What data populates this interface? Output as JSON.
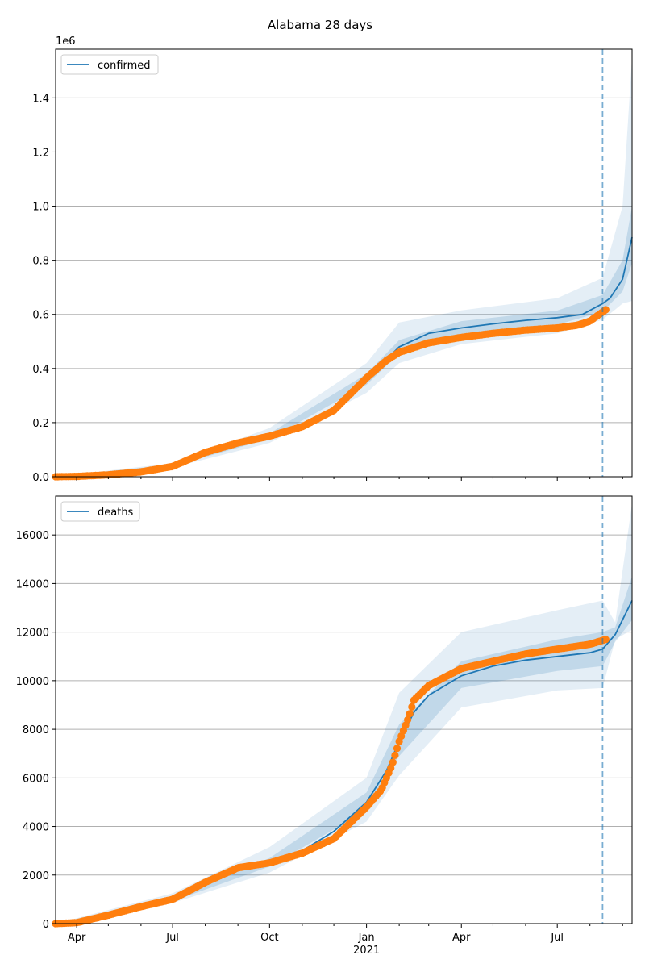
{
  "title": "Alabama 28 days",
  "chart_data": [
    {
      "type": "line",
      "legend": "confirmed",
      "legend_position": "top-left",
      "offset_label": "1e6",
      "scale": 1000000,
      "ylim": [
        0,
        1580000
      ],
      "yticks": [
        0,
        200000,
        400000,
        600000,
        800000,
        1000000,
        1200000,
        1400000
      ],
      "ytick_labels": [
        "0.0",
        "0.2",
        "0.4",
        "0.6",
        "0.8",
        "1.0",
        "1.2",
        "1.4"
      ],
      "grid": "horizontal",
      "forecast_start": "2021-08-13",
      "model_median": [
        [
          "2020-03-12",
          0
        ],
        [
          "2020-04-01",
          1000
        ],
        [
          "2020-05-01",
          8000
        ],
        [
          "2020-06-01",
          20000
        ],
        [
          "2020-07-01",
          42000
        ],
        [
          "2020-08-01",
          95000
        ],
        [
          "2020-09-01",
          125000
        ],
        [
          "2020-10-01",
          150000
        ],
        [
          "2020-11-01",
          185000
        ],
        [
          "2020-12-01",
          250000
        ],
        [
          "2021-01-01",
          360000
        ],
        [
          "2021-02-01",
          480000
        ],
        [
          "2021-03-01",
          530000
        ],
        [
          "2021-04-01",
          550000
        ],
        [
          "2021-05-01",
          565000
        ],
        [
          "2021-06-01",
          578000
        ],
        [
          "2021-07-01",
          588000
        ],
        [
          "2021-07-25",
          600000
        ],
        [
          "2021-08-13",
          640000
        ],
        [
          "2021-08-20",
          660000
        ],
        [
          "2021-09-01",
          730000
        ],
        [
          "2021-09-10",
          885000
        ]
      ],
      "band_inner": [
        [
          "2020-03-12",
          0,
          0
        ],
        [
          "2020-07-01",
          39000,
          45000
        ],
        [
          "2020-10-01",
          140000,
          160000
        ],
        [
          "2021-01-01",
          340000,
          380000
        ],
        [
          "2021-02-01",
          455000,
          505000
        ],
        [
          "2021-04-01",
          525000,
          575000
        ],
        [
          "2021-07-01",
          562000,
          614000
        ],
        [
          "2021-08-13",
          610000,
          672000
        ],
        [
          "2021-09-01",
          685000,
          800000
        ],
        [
          "2021-09-10",
          790000,
          1000000
        ]
      ],
      "band_outer": [
        [
          "2020-03-12",
          0,
          0
        ],
        [
          "2020-07-01",
          34000,
          50000
        ],
        [
          "2020-10-01",
          125000,
          180000
        ],
        [
          "2021-01-01",
          310000,
          420000
        ],
        [
          "2021-02-01",
          420000,
          570000
        ],
        [
          "2021-04-01",
          490000,
          615000
        ],
        [
          "2021-07-01",
          530000,
          660000
        ],
        [
          "2021-08-13",
          580000,
          735000
        ],
        [
          "2021-09-01",
          640000,
          1000000
        ],
        [
          "2021-09-10",
          650000,
          1550000
        ]
      ],
      "observed": [
        [
          "2020-03-12",
          0
        ],
        [
          "2020-04-01",
          1200
        ],
        [
          "2020-05-01",
          7000
        ],
        [
          "2020-06-01",
          18000
        ],
        [
          "2020-07-01",
          38000
        ],
        [
          "2020-08-01",
          90000
        ],
        [
          "2020-09-01",
          125000
        ],
        [
          "2020-10-01",
          150000
        ],
        [
          "2020-11-01",
          185000
        ],
        [
          "2020-12-01",
          245000
        ],
        [
          "2021-01-01",
          365000
        ],
        [
          "2021-01-20",
          430000
        ],
        [
          "2021-02-01",
          460000
        ],
        [
          "2021-03-01",
          495000
        ],
        [
          "2021-04-01",
          515000
        ],
        [
          "2021-05-01",
          530000
        ],
        [
          "2021-06-01",
          542000
        ],
        [
          "2021-07-01",
          550000
        ],
        [
          "2021-07-20",
          560000
        ],
        [
          "2021-08-01",
          575000
        ],
        [
          "2021-08-08",
          595000
        ],
        [
          "2021-08-16",
          617000
        ]
      ]
    },
    {
      "type": "line",
      "legend": "deaths",
      "legend_position": "top-left",
      "ylim": [
        0,
        17600
      ],
      "yticks": [
        0,
        2000,
        4000,
        6000,
        8000,
        10000,
        12000,
        14000,
        16000
      ],
      "ytick_labels": [
        "0",
        "2000",
        "4000",
        "6000",
        "8000",
        "10000",
        "12000",
        "14000",
        "16000"
      ],
      "grid": "horizontal",
      "forecast_start": "2021-08-13",
      "model_median": [
        [
          "2020-03-12",
          0
        ],
        [
          "2020-04-01",
          40
        ],
        [
          "2020-05-01",
          400
        ],
        [
          "2020-06-01",
          750
        ],
        [
          "2020-07-01",
          1000
        ],
        [
          "2020-08-01",
          1600
        ],
        [
          "2020-09-01",
          2200
        ],
        [
          "2020-10-01",
          2500
        ],
        [
          "2020-11-01",
          3000
        ],
        [
          "2020-12-01",
          3800
        ],
        [
          "2021-01-01",
          5000
        ],
        [
          "2021-01-20",
          6300
        ],
        [
          "2021-02-01",
          7500
        ],
        [
          "2021-02-15",
          8700
        ],
        [
          "2021-03-01",
          9400
        ],
        [
          "2021-04-01",
          10200
        ],
        [
          "2021-05-01",
          10600
        ],
        [
          "2021-06-01",
          10850
        ],
        [
          "2021-07-01",
          11000
        ],
        [
          "2021-08-01",
          11150
        ],
        [
          "2021-08-13",
          11300
        ],
        [
          "2021-08-25",
          11900
        ],
        [
          "2021-09-10",
          13300
        ]
      ],
      "band_inner": [
        [
          "2020-03-12",
          0,
          0
        ],
        [
          "2020-07-01",
          920,
          1080
        ],
        [
          "2020-10-01",
          2350,
          2700
        ],
        [
          "2021-01-01",
          4650,
          5400
        ],
        [
          "2021-02-01",
          6900,
          8200
        ],
        [
          "2021-04-01",
          9700,
          10800
        ],
        [
          "2021-07-01",
          10400,
          11700
        ],
        [
          "2021-08-13",
          10600,
          12000
        ],
        [
          "2021-08-25",
          11600,
          12200
        ],
        [
          "2021-09-10",
          12500,
          14300
        ]
      ],
      "band_outer": [
        [
          "2020-03-12",
          0,
          0
        ],
        [
          "2020-07-01",
          850,
          1250
        ],
        [
          "2020-10-01",
          2100,
          3150
        ],
        [
          "2021-01-01",
          4200,
          6000
        ],
        [
          "2021-02-01",
          6100,
          9500
        ],
        [
          "2021-04-01",
          8900,
          12000
        ],
        [
          "2021-07-01",
          9600,
          12900
        ],
        [
          "2021-08-13",
          9700,
          13300
        ],
        [
          "2021-08-25",
          11700,
          12400
        ],
        [
          "2021-09-10",
          12100,
          17300
        ]
      ],
      "observed": [
        [
          "2020-03-12",
          0
        ],
        [
          "2020-04-01",
          40
        ],
        [
          "2020-05-01",
          350
        ],
        [
          "2020-06-01",
          700
        ],
        [
          "2020-07-01",
          1000
        ],
        [
          "2020-08-01",
          1700
        ],
        [
          "2020-09-01",
          2300
        ],
        [
          "2020-10-01",
          2500
        ],
        [
          "2020-11-01",
          2900
        ],
        [
          "2020-12-01",
          3500
        ],
        [
          "2021-01-01",
          4800
        ],
        [
          "2021-01-15",
          5500
        ],
        [
          "2021-01-25",
          6500
        ],
        [
          "2021-02-01",
          7500
        ],
        [
          "2021-02-10",
          8500
        ],
        [
          "2021-02-15",
          9200
        ],
        [
          "2021-03-01",
          9800
        ],
        [
          "2021-04-01",
          10500
        ],
        [
          "2021-05-01",
          10800
        ],
        [
          "2021-06-01",
          11100
        ],
        [
          "2021-07-01",
          11300
        ],
        [
          "2021-08-01",
          11500
        ],
        [
          "2021-08-16",
          11700
        ]
      ]
    }
  ],
  "x_axis": {
    "start": "2020-03-12",
    "end": "2021-09-10",
    "major_ticks": [
      {
        "date": "2020-04-01",
        "label": "Apr"
      },
      {
        "date": "2020-07-01",
        "label": "Jul"
      },
      {
        "date": "2020-10-01",
        "label": "Oct"
      },
      {
        "date": "2021-01-01",
        "label": "Jan"
      },
      {
        "date": "2021-04-01",
        "label": "Apr"
      },
      {
        "date": "2021-07-01",
        "label": "Jul"
      }
    ],
    "year_label": "2021",
    "year_label_date": "2021-01-01"
  },
  "colors": {
    "model": "#1f77b4",
    "observed": "#ff7f0e",
    "band": "#1f77b4",
    "grid": "#b0b0b0",
    "forecast_line": "#1f77b4"
  }
}
